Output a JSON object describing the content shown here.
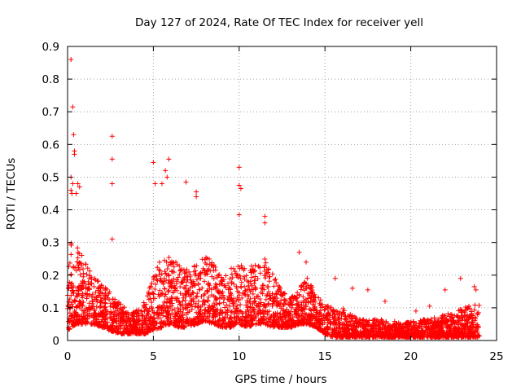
{
  "chart_data": {
    "type": "scatter",
    "title": "Day 127 of 2024, Rate Of TEC Index for receiver yell",
    "xlabel": "GPS time / hours",
    "ylabel": "ROTI / TECUs",
    "xlim": [
      0,
      25
    ],
    "ylim": [
      0,
      0.9
    ],
    "x_ticks": [
      0,
      5,
      10,
      15,
      20,
      25
    ],
    "x_tick_labels": [
      "0",
      "5",
      "10",
      "15",
      "20",
      "25"
    ],
    "y_ticks": [
      0,
      0.1,
      0.2,
      0.3,
      0.4,
      0.5,
      0.6,
      0.7,
      0.8,
      0.9
    ],
    "y_tick_labels": [
      "0",
      "0.1",
      "0.2",
      "0.3",
      "0.4",
      "0.5",
      "0.6",
      "0.7",
      "0.8",
      "0.9"
    ],
    "grid": true,
    "marker": "+",
    "marker_color": "#ff0000",
    "series": [
      {
        "name": "ROTI",
        "envelope_hours": [
          0,
          0.25,
          0.5,
          1,
          1.5,
          2,
          2.5,
          3,
          3.5,
          4,
          4.5,
          5,
          5.5,
          6,
          6.5,
          7,
          7.5,
          8,
          8.5,
          9,
          9.5,
          10,
          10.5,
          11,
          11.5,
          12,
          12.5,
          13,
          13.5,
          14,
          14.5,
          15,
          15.5,
          16,
          16.5,
          17,
          17.5,
          18,
          18.5,
          19,
          19.5,
          20,
          20.5,
          21,
          21.5,
          22,
          22.5,
          23,
          23.5,
          24
        ],
        "envelope_typical_max": [
          0.3,
          0.33,
          0.3,
          0.24,
          0.2,
          0.18,
          0.15,
          0.12,
          0.09,
          0.09,
          0.12,
          0.2,
          0.26,
          0.26,
          0.23,
          0.22,
          0.25,
          0.26,
          0.24,
          0.2,
          0.22,
          0.24,
          0.22,
          0.24,
          0.26,
          0.2,
          0.15,
          0.13,
          0.16,
          0.2,
          0.14,
          0.11,
          0.1,
          0.1,
          0.08,
          0.07,
          0.06,
          0.07,
          0.06,
          0.06,
          0.05,
          0.06,
          0.06,
          0.07,
          0.07,
          0.08,
          0.09,
          0.1,
          0.11,
          0.12
        ],
        "envelope_typical_min": [
          0.03,
          0.04,
          0.05,
          0.05,
          0.05,
          0.04,
          0.03,
          0.02,
          0.02,
          0.02,
          0.02,
          0.03,
          0.04,
          0.05,
          0.04,
          0.04,
          0.05,
          0.06,
          0.05,
          0.04,
          0.04,
          0.05,
          0.04,
          0.05,
          0.05,
          0.04,
          0.04,
          0.04,
          0.05,
          0.05,
          0.04,
          0.02,
          0.01,
          0.01,
          0.01,
          0.01,
          0.01,
          0.01,
          0.01,
          0.01,
          0.01,
          0.01,
          0.01,
          0.01,
          0.01,
          0.01,
          0.01,
          0.01,
          0.01,
          0.01
        ],
        "outliers": [
          [
            0.2,
            0.86
          ],
          [
            0.3,
            0.715
          ],
          [
            0.35,
            0.63
          ],
          [
            0.4,
            0.58
          ],
          [
            0.4,
            0.57
          ],
          [
            0.2,
            0.5
          ],
          [
            0.3,
            0.48
          ],
          [
            0.6,
            0.48
          ],
          [
            0.7,
            0.47
          ],
          [
            0.2,
            0.46
          ],
          [
            0.5,
            0.45
          ],
          [
            0.25,
            0.45
          ],
          [
            2.6,
            0.625
          ],
          [
            2.6,
            0.555
          ],
          [
            2.6,
            0.48
          ],
          [
            2.6,
            0.31
          ],
          [
            5.0,
            0.545
          ],
          [
            5.1,
            0.48
          ],
          [
            5.9,
            0.555
          ],
          [
            5.7,
            0.52
          ],
          [
            5.8,
            0.5
          ],
          [
            5.5,
            0.48
          ],
          [
            6.9,
            0.485
          ],
          [
            7.5,
            0.455
          ],
          [
            7.5,
            0.44
          ],
          [
            10.0,
            0.53
          ],
          [
            10.0,
            0.475
          ],
          [
            10.1,
            0.465
          ],
          [
            10.0,
            0.385
          ],
          [
            11.5,
            0.38
          ],
          [
            11.5,
            0.36
          ],
          [
            13.5,
            0.27
          ],
          [
            13.9,
            0.24
          ],
          [
            15.6,
            0.19
          ],
          [
            16.6,
            0.16
          ],
          [
            17.5,
            0.155
          ],
          [
            18.5,
            0.12
          ],
          [
            20.3,
            0.09
          ],
          [
            21.1,
            0.105
          ],
          [
            22.0,
            0.155
          ],
          [
            22.9,
            0.19
          ],
          [
            23.7,
            0.165
          ],
          [
            23.8,
            0.155
          ]
        ]
      }
    ]
  }
}
